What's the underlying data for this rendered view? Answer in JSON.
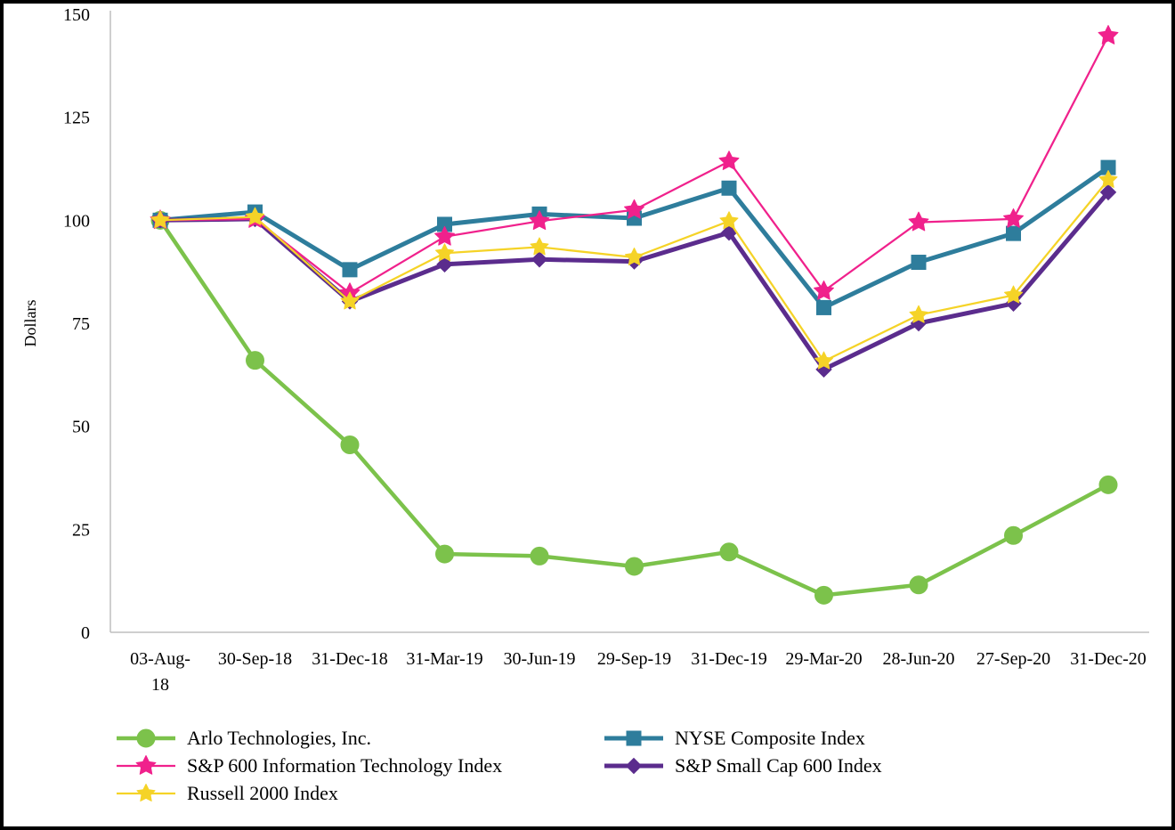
{
  "page": {
    "background_color": "#ffffff",
    "border_color": "#000000",
    "axis_line_color": "#bfbfbf",
    "text_color": "#000000"
  },
  "chart_data": {
    "type": "line",
    "title": "",
    "xlabel": "",
    "ylabel": "Dollars",
    "ylim": [
      0,
      150
    ],
    "yticks": [
      0,
      25,
      50,
      75,
      100,
      125,
      150
    ],
    "grid": false,
    "legend_position": "bottom",
    "categories": [
      "03-Aug-18",
      "30-Sep-18",
      "31-Dec-18",
      "31-Mar-19",
      "30-Jun-19",
      "29-Sep-19",
      "31-Dec-19",
      "29-Mar-20",
      "28-Jun-20",
      "27-Sep-20",
      "31-Dec-20"
    ],
    "x_tick_lines": [
      [
        "03-Aug-",
        "18"
      ],
      [
        "30-Sep-18"
      ],
      [
        "31-Dec-18"
      ],
      [
        "31-Mar-19"
      ],
      [
        "30-Jun-19"
      ],
      [
        "29-Sep-19"
      ],
      [
        "31-Dec-19"
      ],
      [
        "29-Mar-20"
      ],
      [
        "28-Jun-20"
      ],
      [
        "27-Sep-20"
      ],
      [
        "31-Dec-20"
      ]
    ],
    "series": [
      {
        "name": "Arlo Technologies, Inc.",
        "color": "#7cc24b",
        "marker": "circle",
        "marker_size": 10,
        "line_width": 4.5,
        "values": [
          100,
          66,
          45.5,
          19,
          18.5,
          16,
          19.5,
          9,
          11.5,
          23.5,
          35.8
        ]
      },
      {
        "name": "NYSE Composite Index",
        "color": "#2e7d9c",
        "marker": "square",
        "marker_size": 8,
        "line_width": 5,
        "values": [
          100,
          102,
          88,
          99,
          101.5,
          100.5,
          107.8,
          78.8,
          89.8,
          96.8,
          112.8
        ]
      },
      {
        "name": "S&P 600 Information Technology Index",
        "color": "#f0218c",
        "marker": "star",
        "marker_size": 11.5,
        "line_width": 2.25,
        "values": [
          100,
          100.3,
          82.3,
          96,
          99.8,
          102.5,
          114.3,
          82.8,
          99.5,
          100.3,
          144.8
        ]
      },
      {
        "name": "S&P Small Cap 600 Index",
        "color": "#5b2c8d",
        "marker": "diamond",
        "marker_size": 8.5,
        "line_width": 5,
        "values": [
          100,
          100.3,
          80.3,
          89.3,
          90.5,
          90,
          97,
          63.8,
          75,
          79.8,
          106.8
        ]
      },
      {
        "name": "Russell 2000 Index",
        "color": "#f5d327",
        "marker": "star",
        "marker_size": 10.5,
        "line_width": 2.25,
        "values": [
          100,
          100.8,
          80.3,
          92,
          93.5,
          91,
          99.8,
          65.8,
          77,
          81.8,
          109.8
        ]
      }
    ],
    "draw_order": [
      0,
      1,
      3,
      2,
      4
    ],
    "legend_order": [
      0,
      1,
      2,
      3,
      4
    ]
  }
}
